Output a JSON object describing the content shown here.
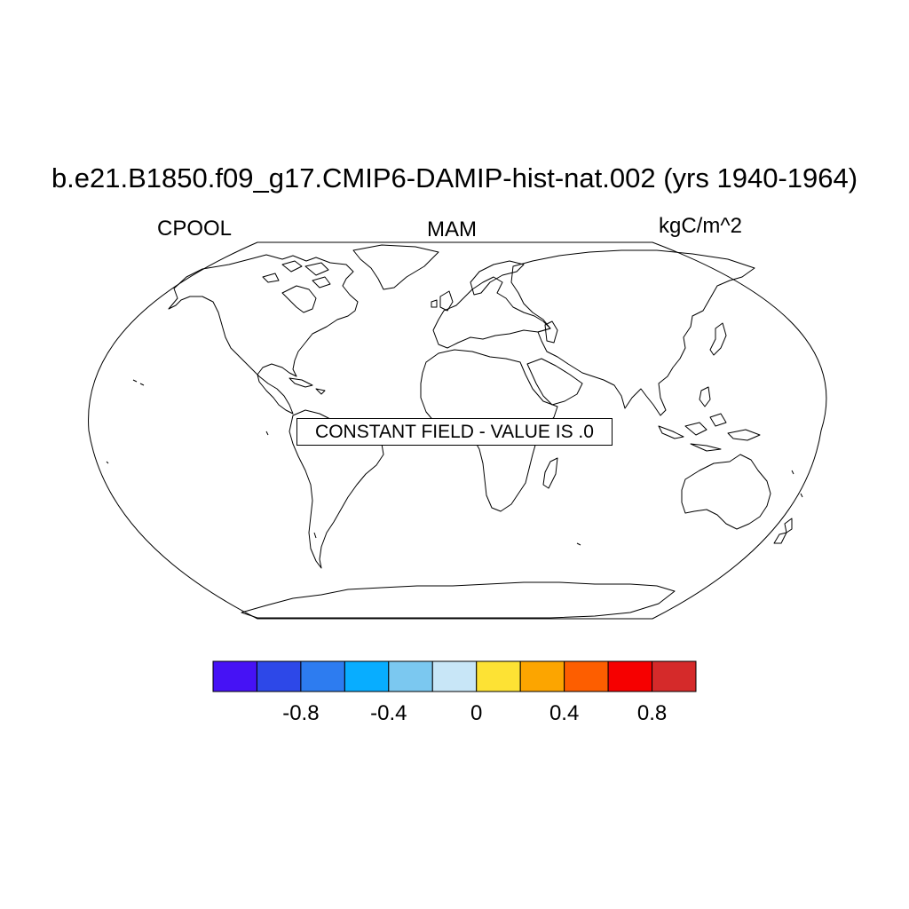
{
  "title": "b.e21.B1850.f09_g17.CMIP6-DAMIP-hist-nat.002 (yrs 1940-1964)",
  "subtitles": {
    "left": "CPOOL",
    "center": "MAM",
    "right": "kgC/m^2"
  },
  "notice": "CONSTANT FIELD - VALUE IS .0",
  "map": {
    "projection": "Robinson",
    "land_fill": "none",
    "coastline_color": "#000000"
  },
  "colorbar": {
    "colors": [
      "#4612f5",
      "#2d48e8",
      "#2d7cf0",
      "#08adff",
      "#7bc8f0",
      "#c8e6f7",
      "#fde234",
      "#fca500",
      "#fd5e00",
      "#f60000",
      "#d52a2a"
    ],
    "tick_labels": [
      "-0.8",
      "-0.4",
      "0",
      "0.4",
      "0.8"
    ],
    "tick_values": [
      -0.8,
      -0.4,
      0,
      0.4,
      0.8
    ],
    "range": [
      -1.0,
      1.0
    ],
    "interval": 0.2
  }
}
